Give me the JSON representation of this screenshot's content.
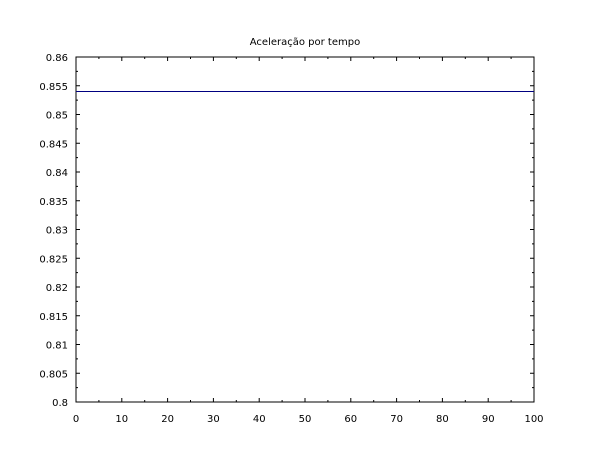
{
  "chart_data": {
    "type": "line",
    "title": "Aceleração por tempo",
    "xlabel": "",
    "ylabel": "",
    "xlim": [
      0,
      100
    ],
    "ylim": [
      0.8,
      0.86
    ],
    "x_ticks": [
      0,
      10,
      20,
      30,
      40,
      50,
      60,
      70,
      80,
      90,
      100
    ],
    "y_ticks": [
      0.8,
      0.805,
      0.81,
      0.815,
      0.82,
      0.825,
      0.83,
      0.835,
      0.84,
      0.845,
      0.85,
      0.855,
      0.86
    ],
    "x_tick_labels": [
      "0",
      "10",
      "20",
      "30",
      "40",
      "50",
      "60",
      "70",
      "80",
      "90",
      "100"
    ],
    "y_tick_labels": [
      "0.8",
      "0.805",
      "0.81",
      "0.815",
      "0.82",
      "0.825",
      "0.83",
      "0.835",
      "0.84",
      "0.845",
      "0.85",
      "0.855",
      "0.86"
    ],
    "grid": false,
    "legend": "none",
    "series": [
      {
        "color": "#000080",
        "x": [
          0,
          100
        ],
        "y": [
          0.854,
          0.854
        ]
      }
    ]
  }
}
